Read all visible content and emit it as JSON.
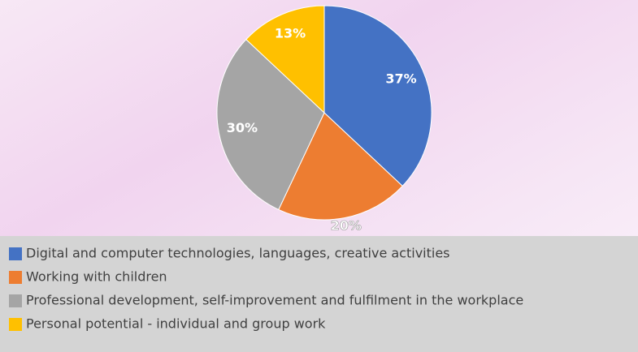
{
  "chart_data": {
    "type": "pie",
    "categories": [
      "Digital and computer technologies, languages, creative activities",
      "Working with children",
      "Professional development, self-improvement and fulfilment in the workplace",
      "Personal potential - individual and group work"
    ],
    "values": [
      37,
      20,
      30,
      13
    ],
    "value_labels": [
      "37%",
      "20%",
      "30%",
      "13%"
    ],
    "colors": [
      "#4472c4",
      "#ed7d31",
      "#a5a5a5",
      "#ffc000"
    ]
  }
}
